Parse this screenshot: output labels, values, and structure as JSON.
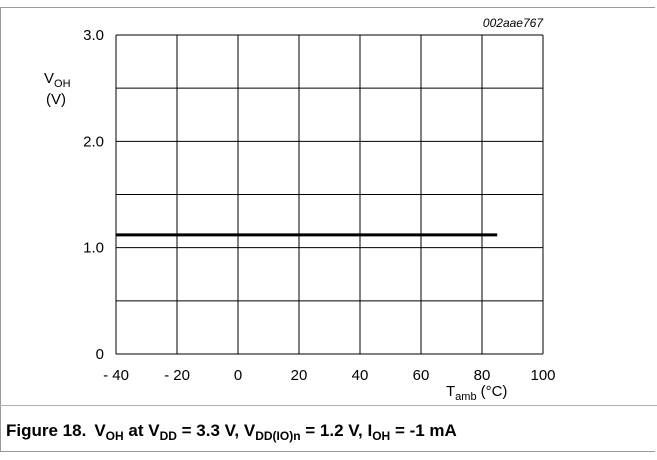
{
  "chart_data": {
    "type": "line",
    "figure_code": "002aae767",
    "ylabel_line1_main": "V",
    "ylabel_line1_sub": "OH",
    "ylabel_line2": "(V)",
    "xlabel_main": "T",
    "xlabel_sub": "amb",
    "xlabel_unit": "(°C)",
    "xlim": [
      -40,
      100
    ],
    "ylim": [
      0,
      3.0
    ],
    "x_ticks": [
      -40,
      -20,
      0,
      20,
      40,
      60,
      80,
      100
    ],
    "x_tick_labels": [
      "- 40",
      "- 20",
      "0",
      "20",
      "40",
      "60",
      "80",
      "100"
    ],
    "y_ticks": [
      0,
      0.5,
      1.0,
      1.5,
      2.0,
      2.5,
      3.0
    ],
    "y_tick_labels": [
      "0",
      "",
      "1.0",
      "",
      "2.0",
      "",
      "3.0"
    ],
    "grid": true,
    "series": [
      {
        "x": [
          -40,
          85
        ],
        "values": [
          1.12,
          1.12
        ]
      }
    ]
  },
  "caption": {
    "figure_label": "Figure 18.",
    "parts": [
      {
        "t": "V",
        "sub": "OH"
      },
      {
        "t": " at V",
        "sub": "DD"
      },
      {
        "t": " = 3.3 V, V",
        "sub": "DD(IO)n"
      },
      {
        "t": " = 1.2 V, I",
        "sub": "OH"
      },
      {
        "t": " = -1 mA",
        "sub": ""
      }
    ]
  }
}
